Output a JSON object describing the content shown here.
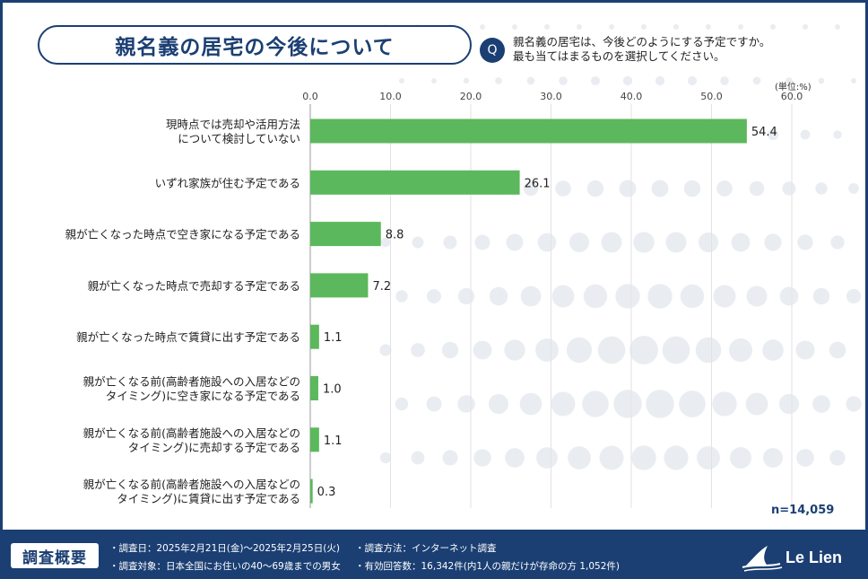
{
  "header": {
    "title": "親名義の居宅の今後について",
    "q_badge": "Q",
    "question_lines": [
      "親名義の居宅は、今後どのようにする予定ですか。",
      "最も当てはまるものを選択してください。"
    ]
  },
  "chart_data": {
    "type": "bar",
    "orientation": "horizontal",
    "unit_label": "(単位:%)",
    "xlim": [
      0,
      60
    ],
    "ticks": [
      "0.0",
      "10.0",
      "20.0",
      "30.0",
      "40.0",
      "50.0",
      "60.0"
    ],
    "tick_values": [
      0,
      10,
      20,
      30,
      40,
      50,
      60
    ],
    "grid": true,
    "categories": [
      [
        "現時点では売却や活用方法",
        "について検討していない"
      ],
      [
        "いずれ家族が住む予定である"
      ],
      [
        "親が亡くなった時点で空き家になる予定である"
      ],
      [
        "親が亡くなった時点で売却する予定である"
      ],
      [
        "親が亡くなった時点で賃貸に出す予定である"
      ],
      [
        "親が亡くなる前(高齢者施設への入居などの",
        "タイミング)に空き家になる予定である"
      ],
      [
        "親が亡くなる前(高齢者施設への入居などの",
        "タイミング)に売却する予定である"
      ],
      [
        "親が亡くなる前(高齢者施設への入居などの",
        "タイミング)に賃貸に出す予定である"
      ]
    ],
    "values": [
      54.4,
      26.1,
      8.8,
      7.2,
      1.1,
      1.0,
      1.1,
      0.3
    ],
    "value_labels": [
      "54.4",
      "26.1",
      "8.8",
      "7.2",
      "1.1",
      "1.0",
      "1.1",
      "0.3"
    ],
    "bar_color": "#5cb85c",
    "n_label": "n=14,059"
  },
  "footer": {
    "title": "調査概要",
    "notes": [
      "・調査日：2025年2月21日(金)〜2025年2月25日(火)",
      "・調査対象：日本全国にお住いの40〜69歳までの男女",
      "・調査方法：インターネット調査",
      "・有効回答数：16,342件(内1人の親だけが存命の方 1,052件)"
    ],
    "logo_text": "Le Lien"
  },
  "colors": {
    "navy": "#1b3f73",
    "bar": "#5cb85c",
    "dots": "#e9edf2"
  }
}
